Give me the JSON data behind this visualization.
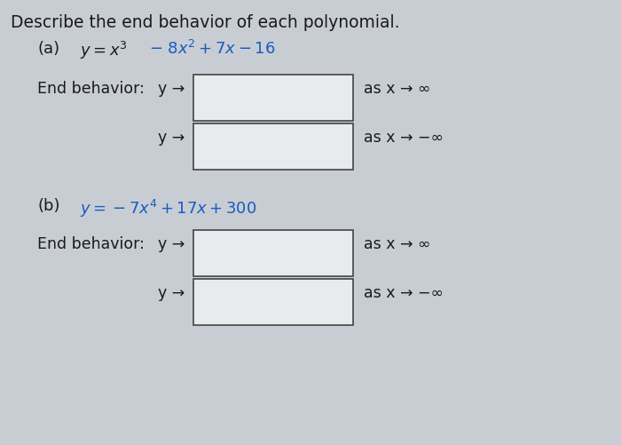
{
  "title": "Describe the end behavior of each polynomial.",
  "bg_color": "#c8cdd4",
  "box_color": "#e8ebee",
  "box_edge_color": "#444444",
  "text_color": "#1a1a1a",
  "blue_color": "#1a5bbf",
  "end_behavior_label": "End behavior:",
  "y_arrow": "y →",
  "as_x_pos_inf": "as x → ∞",
  "as_x_neg_inf": "as x → −∞",
  "font_size_title": 13.5,
  "font_size_eq": 13,
  "font_size_label": 12.5
}
